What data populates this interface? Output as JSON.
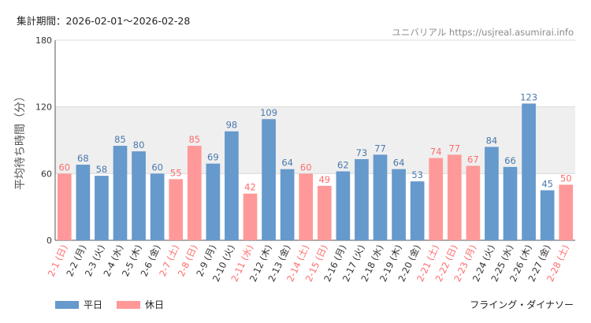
{
  "header": {
    "period": "集計期間：2026-02-01〜2026-02-28",
    "watermark": "ユニバリアル https://usjreal.asumirai.info"
  },
  "footer": {
    "attraction": "フライング・ダイナソー"
  },
  "colors": {
    "weekday": "#6699cc",
    "holiday": "#ff9999",
    "weekday_label": "#4a78ac",
    "holiday_label": "#ff6b6b",
    "band": "#efefef"
  },
  "chart_data": {
    "type": "bar",
    "title": "",
    "ylabel": "平均待ち時間（分）",
    "xlabel": "",
    "ylim": [
      0,
      180
    ],
    "yticks": [
      0,
      60,
      120,
      180
    ],
    "categories": [
      "2-1 (日)",
      "2-2 (月)",
      "2-3 (火)",
      "2-4 (水)",
      "2-5 (木)",
      "2-6 (金)",
      "2-7 (土)",
      "2-8 (日)",
      "2-9 (月)",
      "2-10 (火)",
      "2-11 (水)",
      "2-12 (木)",
      "2-13 (金)",
      "2-14 (土)",
      "2-15 (日)",
      "2-16 (月)",
      "2-17 (火)",
      "2-18 (水)",
      "2-19 (木)",
      "2-20 (金)",
      "2-21 (土)",
      "2-22 (日)",
      "2-23 (月)",
      "2-24 (火)",
      "2-25 (水)",
      "2-26 (木)",
      "2-27 (金)",
      "2-28 (土)"
    ],
    "values": [
      60,
      68,
      58,
      85,
      80,
      60,
      55,
      85,
      69,
      98,
      42,
      109,
      64,
      60,
      49,
      62,
      73,
      77,
      64,
      53,
      74,
      77,
      67,
      84,
      66,
      123,
      45,
      50
    ],
    "day_type": [
      "holiday",
      "weekday",
      "weekday",
      "weekday",
      "weekday",
      "weekday",
      "holiday",
      "holiday",
      "weekday",
      "weekday",
      "holiday",
      "weekday",
      "weekday",
      "holiday",
      "holiday",
      "weekday",
      "weekday",
      "weekday",
      "weekday",
      "weekday",
      "holiday",
      "holiday",
      "holiday",
      "weekday",
      "weekday",
      "weekday",
      "weekday",
      "holiday"
    ],
    "legend": [
      {
        "key": "weekday",
        "label": "平日"
      },
      {
        "key": "holiday",
        "label": "休日"
      }
    ],
    "legend_position": "bottom-left"
  }
}
